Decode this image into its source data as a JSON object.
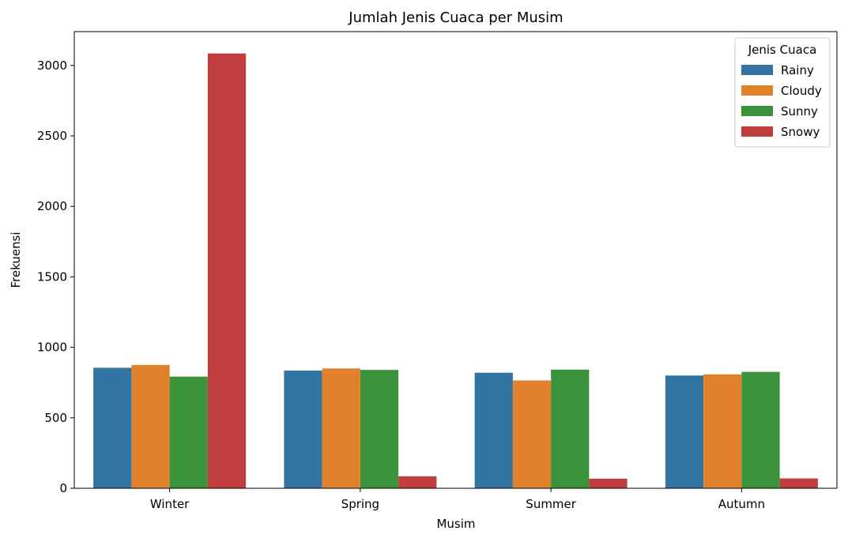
{
  "chart_data": {
    "type": "bar",
    "title": "Jumlah Jenis Cuaca per Musim",
    "xlabel": "Musim",
    "ylabel": "Frekuensi",
    "categories": [
      "Winter",
      "Spring",
      "Summer",
      "Autumn"
    ],
    "series": [
      {
        "name": "Rainy",
        "color": "#3274a1",
        "values": [
          855,
          835,
          820,
          800
        ]
      },
      {
        "name": "Cloudy",
        "color": "#e1812c",
        "values": [
          875,
          850,
          765,
          808
        ]
      },
      {
        "name": "Sunny",
        "color": "#3a923a",
        "values": [
          792,
          840,
          842,
          826
        ]
      },
      {
        "name": "Snowy",
        "color": "#c03d3e",
        "values": [
          3085,
          85,
          68,
          70
        ]
      }
    ],
    "ylim": [
      0,
      3240
    ],
    "yticks": [
      0,
      500,
      1000,
      1500,
      2000,
      2500,
      3000
    ],
    "legend": {
      "title": "Jenis Cuaca",
      "placement": "top-right"
    },
    "grid": false
  }
}
